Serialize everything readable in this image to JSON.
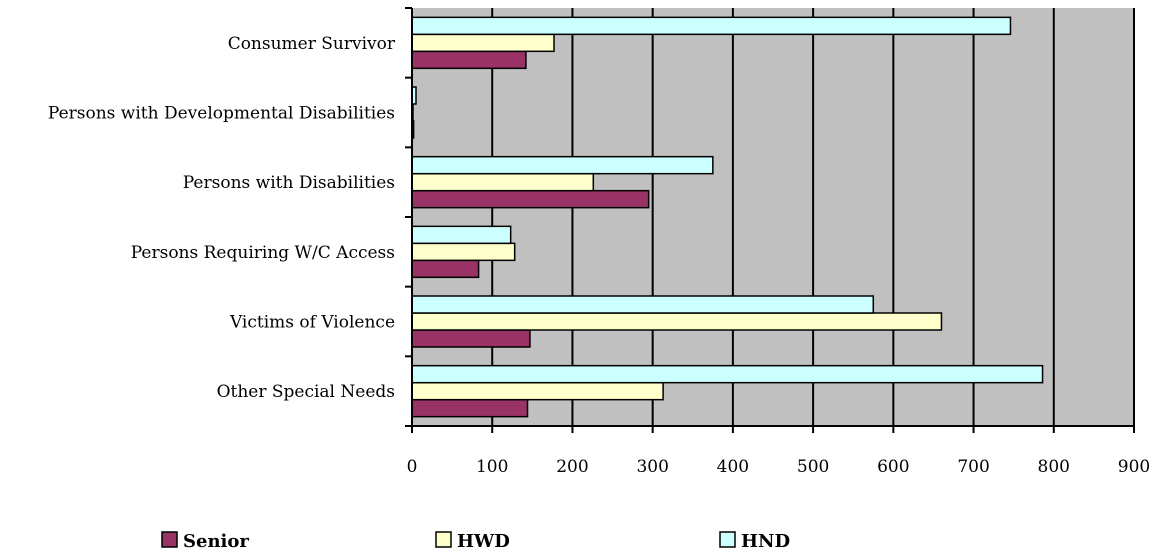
{
  "chart_data": {
    "type": "bar",
    "orientation": "horizontal",
    "categories": [
      "Consumer Survivor",
      "Persons with Developmental Disabilities",
      "Persons with Disabilities",
      "Persons Requiring W/C Access",
      "Victims of Violence",
      "Other Special Needs"
    ],
    "series": [
      {
        "name": "Senior",
        "color": "#993366",
        "values": [
          142,
          2,
          295,
          83,
          147,
          144
        ]
      },
      {
        "name": "HWD",
        "color": "#FFFFCC",
        "values": [
          177,
          1,
          226,
          128,
          660,
          313
        ]
      },
      {
        "name": "HND",
        "color": "#CCFFFF",
        "values": [
          746,
          5,
          375,
          123,
          575,
          786
        ]
      }
    ],
    "xlim": [
      0,
      900
    ],
    "x_ticks": [
      "0",
      "100",
      "200",
      "300",
      "400",
      "500",
      "600",
      "700",
      "800",
      "900"
    ],
    "grid": true,
    "plot_background": "#C0C0C0",
    "legend_position": "bottom"
  }
}
